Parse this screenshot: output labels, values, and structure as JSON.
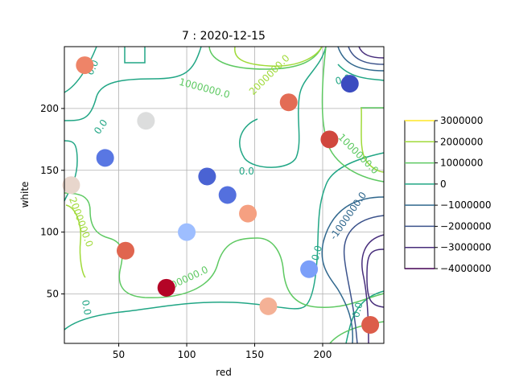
{
  "chart_data": {
    "type": "scatter",
    "title": "7 : 2020-12-15",
    "xlabel": "red",
    "ylabel": "white",
    "xlim": [
      10,
      245
    ],
    "ylim": [
      10,
      250
    ],
    "xticks": [
      50,
      100,
      150,
      200
    ],
    "yticks": [
      50,
      100,
      150,
      200
    ],
    "grid": true,
    "points": [
      {
        "x": 25,
        "y": 235,
        "color": "#ee8468"
      },
      {
        "x": 220,
        "y": 220,
        "color": "#3b4cc0"
      },
      {
        "x": 175,
        "y": 205,
        "color": "#e36c55"
      },
      {
        "x": 70,
        "y": 190,
        "color": "#dcdddd"
      },
      {
        "x": 205,
        "y": 175,
        "color": "#d0473d"
      },
      {
        "x": 40,
        "y": 160,
        "color": "#5977e3"
      },
      {
        "x": 115,
        "y": 145,
        "color": "#4a63d3"
      },
      {
        "x": 15,
        "y": 138,
        "color": "#e8d6cc"
      },
      {
        "x": 130,
        "y": 130,
        "color": "#5470de"
      },
      {
        "x": 145,
        "y": 115,
        "color": "#f5a081"
      },
      {
        "x": 100,
        "y": 100,
        "color": "#9ebeff"
      },
      {
        "x": 55,
        "y": 85,
        "color": "#e0654f"
      },
      {
        "x": 190,
        "y": 70,
        "color": "#7b9ff9"
      },
      {
        "x": 85,
        "y": 55,
        "color": "#b40426"
      },
      {
        "x": 160,
        "y": 40,
        "color": "#f4b196"
      },
      {
        "x": 235,
        "y": 25,
        "color": "#dc5d4a"
      }
    ],
    "contour_labels": [
      {
        "text": "0.0",
        "x": 31,
        "y": 233,
        "color": "#21a685",
        "angle": -65
      },
      {
        "text": "1000000.0",
        "x": 113,
        "y": 216,
        "color": "#5ec962",
        "angle": 15
      },
      {
        "text": "2000000.0",
        "x": 161,
        "y": 227,
        "color": "#a0da39",
        "angle": -45
      },
      {
        "text": "0.0",
        "x": 215,
        "y": 223,
        "color": "#21a685",
        "angle": -15
      },
      {
        "text": "0.0",
        "x": 37,
        "y": 185,
        "color": "#21a685",
        "angle": -55
      },
      {
        "text": "0.0",
        "x": 144,
        "y": 149,
        "color": "#21a685",
        "angle": 0
      },
      {
        "text": "1000000.0",
        "x": 226,
        "y": 163,
        "color": "#5ec962",
        "angle": 45
      },
      {
        "text": "2000000.0",
        "x": 22,
        "y": 108,
        "color": "#a0da39",
        "angle": 70
      },
      {
        "text": "-1000000.0",
        "x": 219,
        "y": 113,
        "color": "#31688e",
        "angle": -55
      },
      {
        "text": "0.0",
        "x": 196,
        "y": 83,
        "color": "#21a685",
        "angle": -75
      },
      {
        "text": "1000000.0",
        "x": 98,
        "y": 61,
        "color": "#5ec962",
        "angle": -25
      },
      {
        "text": "0.0",
        "x": 26,
        "y": 39,
        "color": "#21a685",
        "angle": 80
      },
      {
        "text": "0.0",
        "x": 226,
        "y": 37,
        "color": "#21a685",
        "angle": -75
      }
    ],
    "colorbar": {
      "levels": [
        {
          "label": "3000000",
          "color": "#fde725"
        },
        {
          "label": "2000000",
          "color": "#a0da39"
        },
        {
          "label": "1000000",
          "color": "#5ec962"
        },
        {
          "label": "0",
          "color": "#21a685"
        },
        {
          "label": "−1000000",
          "color": "#31688e"
        },
        {
          "label": "−2000000",
          "color": "#3b528b"
        },
        {
          "label": "−3000000",
          "color": "#472d7b"
        },
        {
          "label": "−4000000",
          "color": "#440154"
        }
      ]
    }
  }
}
